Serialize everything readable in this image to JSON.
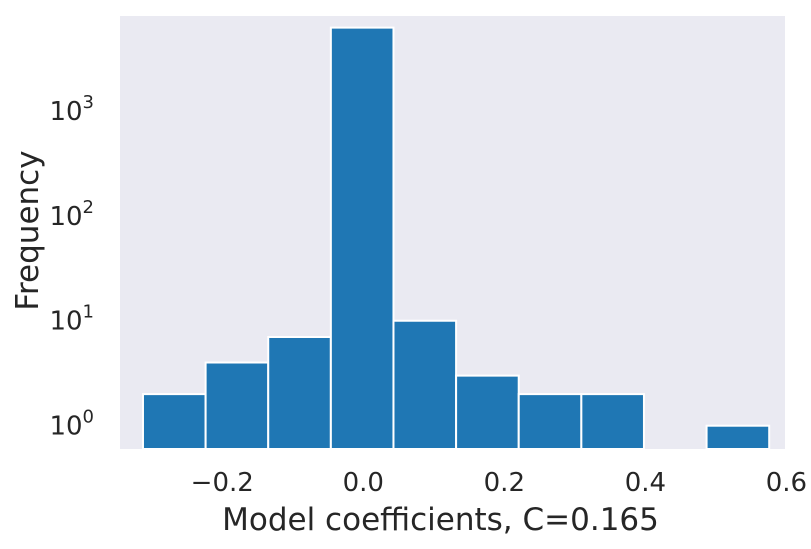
{
  "chart_data": {
    "type": "bar",
    "title": "",
    "xlabel": "Model coefficients, C=0.165",
    "ylabel": "Frequency",
    "yscale": "log",
    "xlim": [
      -0.345,
      0.598
    ],
    "ylim": [
      0.6,
      8000
    ],
    "grid": false,
    "colors": {
      "bar": "#1f77b4",
      "plot_background": "#eaeaf2",
      "bar_edge": "#ffffff"
    },
    "bins": [
      {
        "x0": -0.3124,
        "x1": -0.2236,
        "count": 2
      },
      {
        "x0": -0.2236,
        "x1": -0.1348,
        "count": 4
      },
      {
        "x0": -0.1348,
        "x1": -0.046,
        "count": 7
      },
      {
        "x0": -0.046,
        "x1": 0.0428,
        "count": 6200
      },
      {
        "x0": 0.0428,
        "x1": 0.1316,
        "count": 10
      },
      {
        "x0": 0.1316,
        "x1": 0.2204,
        "count": 3
      },
      {
        "x0": 0.2204,
        "x1": 0.3092,
        "count": 2
      },
      {
        "x0": 0.3092,
        "x1": 0.398,
        "count": 2
      },
      {
        "x0": 0.398,
        "x1": 0.4868,
        "count": 0
      },
      {
        "x0": 0.4868,
        "x1": 0.5756,
        "count": 1
      }
    ],
    "x_ticks": [
      {
        "value": -0.2,
        "label": "−0.2"
      },
      {
        "value": 0.0,
        "label": "0.0"
      },
      {
        "value": 0.2,
        "label": "0.2"
      },
      {
        "value": 0.4,
        "label": "0.4"
      },
      {
        "value": 0.6,
        "label": "0.6"
      }
    ],
    "y_ticks": [
      {
        "value": 1,
        "base": "10",
        "exp": "0"
      },
      {
        "value": 10,
        "base": "10",
        "exp": "1"
      },
      {
        "value": 100,
        "base": "10",
        "exp": "2"
      },
      {
        "value": 1000,
        "base": "10",
        "exp": "3"
      }
    ]
  }
}
